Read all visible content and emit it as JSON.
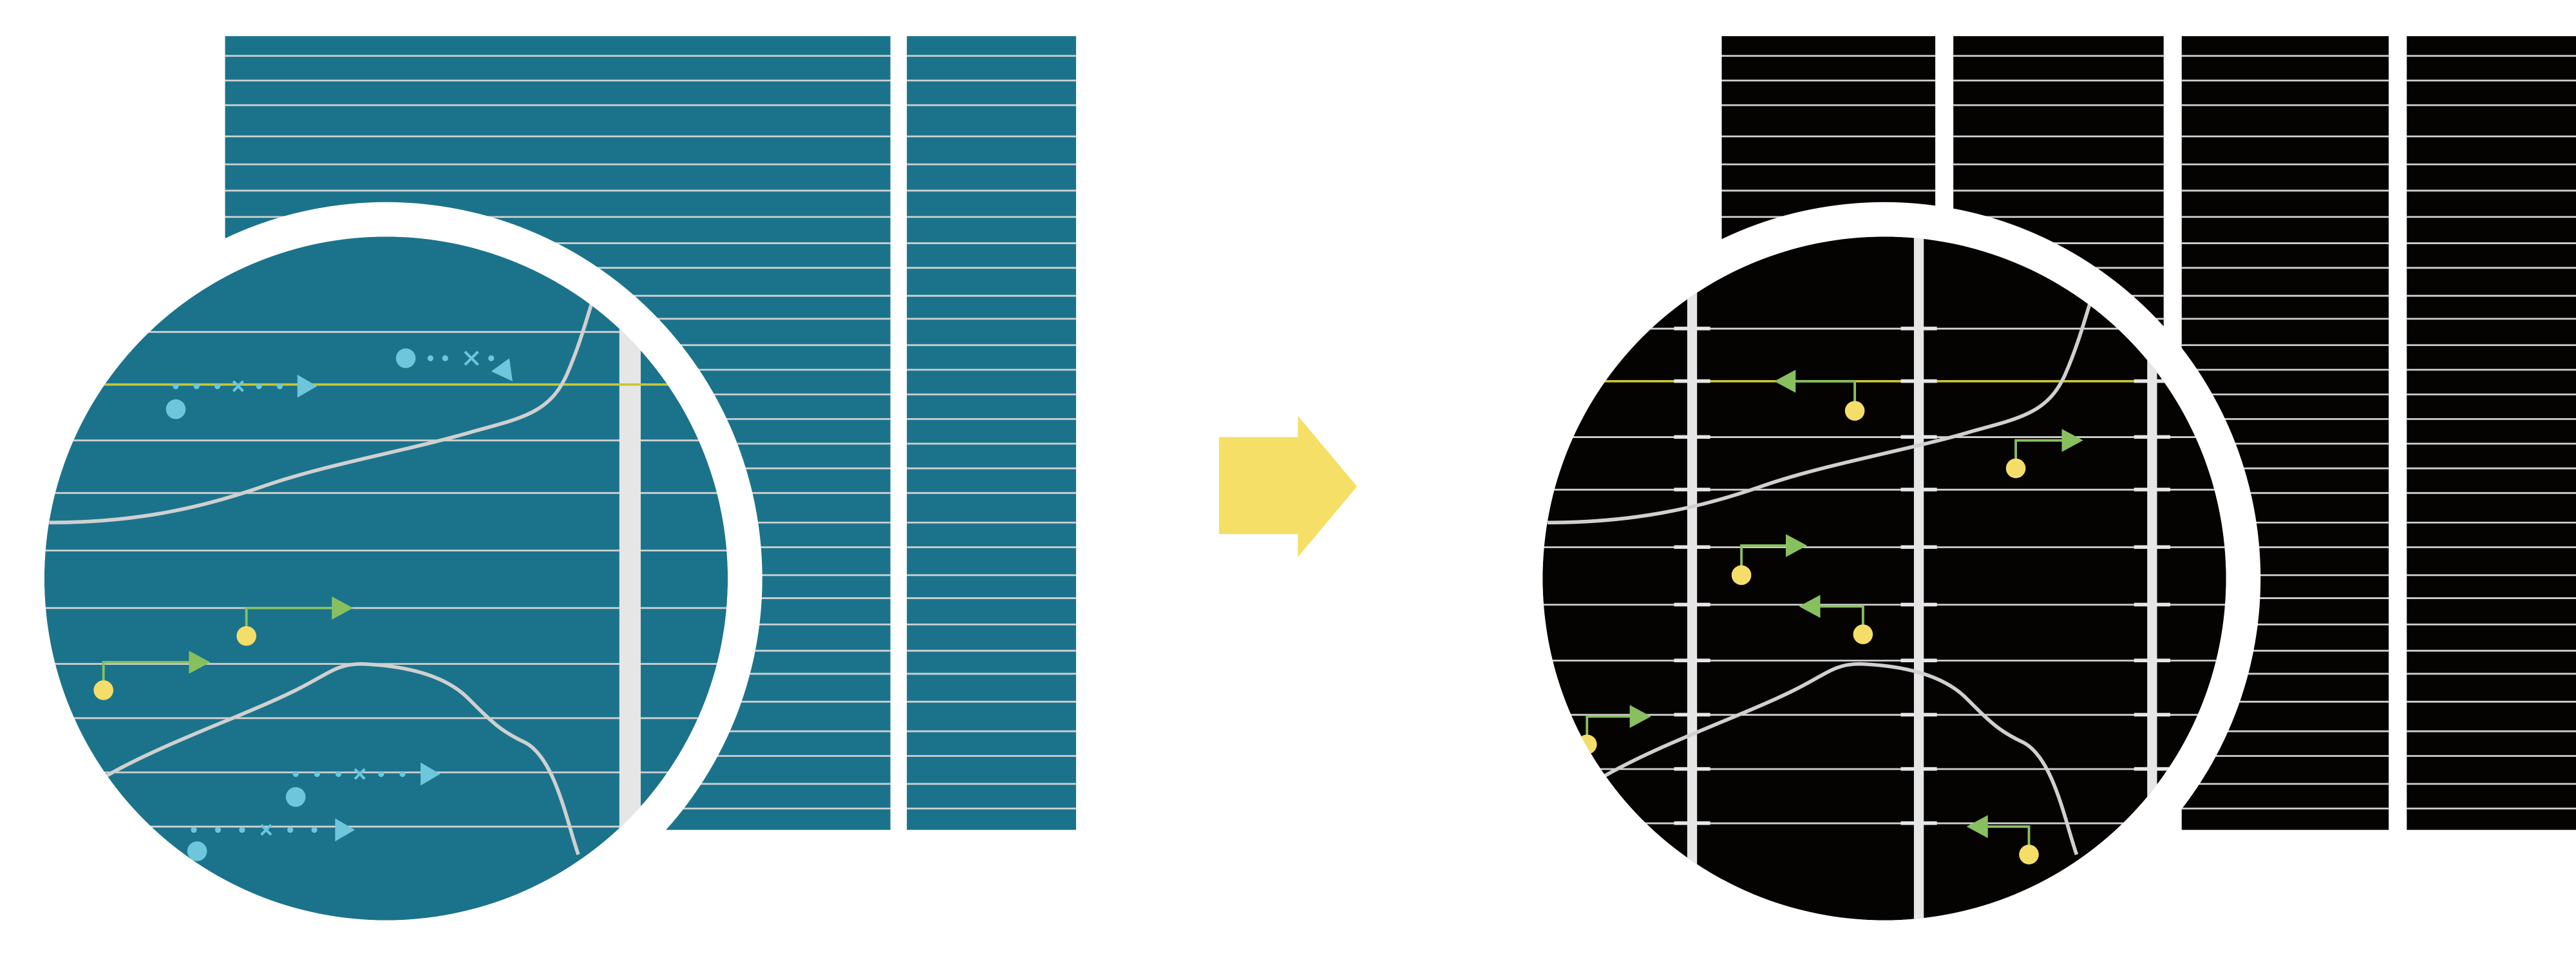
{
  "colors": {
    "left_background": "#1b738b",
    "right_background": "#050202",
    "grid_line": "#d0d0d0",
    "vertical_bar": "#e6e6e6",
    "highlight_line": "#c8c832",
    "cyan_marks": "#6ec6dc",
    "green_arrows": "#88c060",
    "yellow_dots": "#f5dd6a",
    "transition_arrow": "#f5df66",
    "ring": "#ffffff"
  },
  "icons": {
    "transition": "right-arrow-icon"
  }
}
